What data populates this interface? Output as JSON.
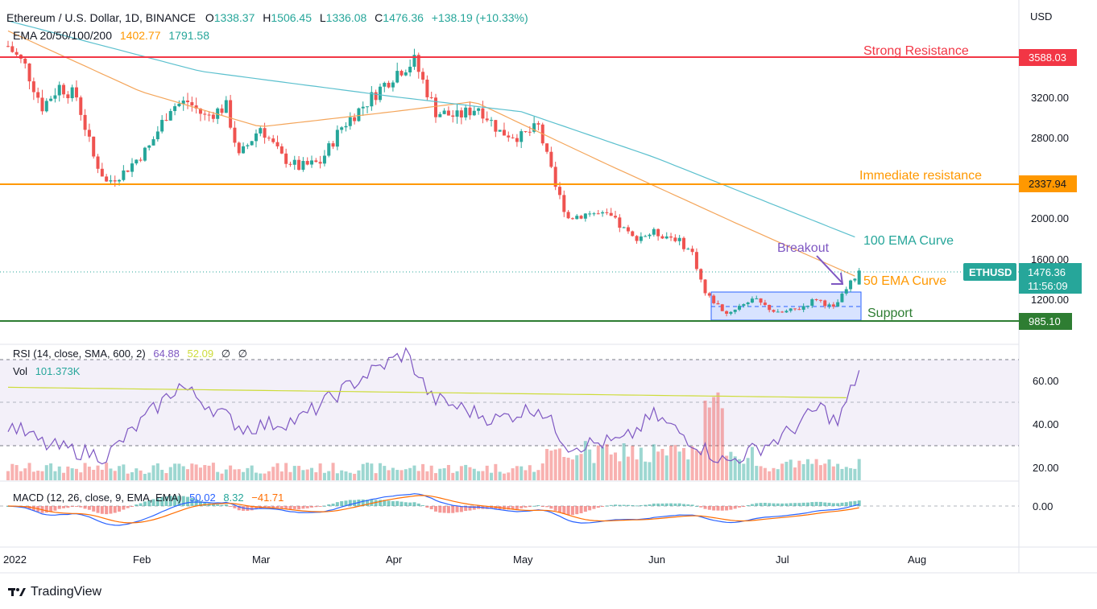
{
  "header": {
    "symbol_line": "Ethereum / U.S. Dollar, 1D, BINANCE",
    "o_label": "O",
    "o": "1338.37",
    "h_label": "H",
    "h": "1506.45",
    "l_label": "L",
    "l": "1336.08",
    "c_label": "C",
    "c": "1476.36",
    "change": "+138.19 (+10.33%)",
    "ema_label": "EMA 20/50/100/200",
    "ema_v1": "1402.77",
    "ema_v2": "1791.58"
  },
  "currency": "USD",
  "price_axis": [
    "3200.00",
    "2800.00",
    "2400.00",
    "2000.00",
    "1600.00",
    "1200.00"
  ],
  "rsi_axis": [
    "60.00",
    "40.00",
    "20.00"
  ],
  "macd_axis": [
    "0.00"
  ],
  "x_axis": [
    "2022",
    "Feb",
    "Mar",
    "Apr",
    "May",
    "Jun",
    "Jul",
    "Aug"
  ],
  "annotations": {
    "strong_resistance": "Strong Resistance",
    "immediate_resistance": "Immediate resistance",
    "ema100_curve": "100 EMA Curve",
    "ema50_curve": "50 EMA Curve",
    "breakout": "Breakout",
    "support": "Support"
  },
  "levels": {
    "strong_resistance": "3588.03",
    "immediate_resistance": "2337.94",
    "support": "985.10",
    "last_ticker": "ETHUSD",
    "last_price": "1476.36",
    "countdown": "11:56:09"
  },
  "rsi": {
    "label": "RSI (14, close, SMA, 600, 2)",
    "v1": "64.88",
    "v2": "52.09",
    "v3": "∅",
    "v4": "∅"
  },
  "vol": {
    "label": "Vol",
    "value": "101.373K"
  },
  "macd": {
    "label": "MACD (12, 26, close, 9, EMA, EMA)",
    "v1": "50.02",
    "v2": "8.32",
    "v3": "−41.71"
  },
  "footer": {
    "brand": "TradingView",
    "logo_icon": "tradingview-logo-icon"
  },
  "colors": {
    "up": "#26a69a",
    "down": "#ef5350",
    "ema50": "#f4a55a",
    "ema100": "#5bc0ce",
    "resistance_strong": "#f23645",
    "resistance_immediate": "#ff9800",
    "support": "#2e7d32",
    "rsi": "#7e57c2",
    "rsi_ma": "#cddc39",
    "macd": "#2962ff",
    "signal": "#ff6d00",
    "box": "#2962ff"
  },
  "chart_data": [
    {
      "type": "candlestick",
      "title": "Ethereum / U.S. Dollar, 1D, BINANCE",
      "x_range": [
        "2022-01-01",
        "2022-08-31"
      ],
      "ylim": [
        950,
        3900
      ],
      "y_ticks": [
        1200,
        1600,
        2000,
        2400,
        2800,
        3200
      ],
      "horizontal_levels": [
        {
          "name": "Strong Resistance",
          "value": 3588.03
        },
        {
          "name": "Immediate resistance",
          "value": 2337.94
        },
        {
          "name": "Support",
          "value": 985.1
        }
      ],
      "close_path": [
        {
          "date": "2022-01-01",
          "close": 3700
        },
        {
          "date": "2022-01-05",
          "close": 3500
        },
        {
          "date": "2022-01-09",
          "close": 3100
        },
        {
          "date": "2022-01-13",
          "close": 3300
        },
        {
          "date": "2022-01-17",
          "close": 3200
        },
        {
          "date": "2022-01-21",
          "close": 2600
        },
        {
          "date": "2022-01-24",
          "close": 2350
        },
        {
          "date": "2022-01-28",
          "close": 2450
        },
        {
          "date": "2022-02-03",
          "close": 2700
        },
        {
          "date": "2022-02-08",
          "close": 3100
        },
        {
          "date": "2022-02-12",
          "close": 3150
        },
        {
          "date": "2022-02-16",
          "close": 3000
        },
        {
          "date": "2022-02-21",
          "close": 3100
        },
        {
          "date": "2022-02-24",
          "close": 2600
        },
        {
          "date": "2022-03-01",
          "close": 2900
        },
        {
          "date": "2022-03-06",
          "close": 2600
        },
        {
          "date": "2022-03-10",
          "close": 2500
        },
        {
          "date": "2022-03-15",
          "close": 2550
        },
        {
          "date": "2022-03-20",
          "close": 2900
        },
        {
          "date": "2022-03-26",
          "close": 3150
        },
        {
          "date": "2022-04-02",
          "close": 3450
        },
        {
          "date": "2022-04-06",
          "close": 3550
        },
        {
          "date": "2022-04-11",
          "close": 3050
        },
        {
          "date": "2022-04-16",
          "close": 3000
        },
        {
          "date": "2022-04-21",
          "close": 3100
        },
        {
          "date": "2022-04-26",
          "close": 2850
        },
        {
          "date": "2022-05-01",
          "close": 2800
        },
        {
          "date": "2022-05-05",
          "close": 2900
        },
        {
          "date": "2022-05-09",
          "close": 2300
        },
        {
          "date": "2022-05-12",
          "close": 2000
        },
        {
          "date": "2022-05-17",
          "close": 2050
        },
        {
          "date": "2022-05-22",
          "close": 2000
        },
        {
          "date": "2022-05-27",
          "close": 1800
        },
        {
          "date": "2022-06-01",
          "close": 1850
        },
        {
          "date": "2022-06-06",
          "close": 1800
        },
        {
          "date": "2022-06-10",
          "close": 1650
        },
        {
          "date": "2022-06-13",
          "close": 1250
        },
        {
          "date": "2022-06-18",
          "close": 1050
        },
        {
          "date": "2022-06-24",
          "close": 1200
        },
        {
          "date": "2022-06-30",
          "close": 1050
        },
        {
          "date": "2022-07-05",
          "close": 1100
        },
        {
          "date": "2022-07-09",
          "close": 1200
        },
        {
          "date": "2022-07-13",
          "close": 1100
        },
        {
          "date": "2022-07-17",
          "close": 1350
        },
        {
          "date": "2022-07-19",
          "close": 1476.36
        }
      ],
      "series": [
        {
          "name": "EMA 50",
          "values": [
            {
              "date": "2022-01-01",
              "value": 3850
            },
            {
              "date": "2022-02-01",
              "value": 3250
            },
            {
              "date": "2022-03-01",
              "value": 2900
            },
            {
              "date": "2022-04-01",
              "value": 3050
            },
            {
              "date": "2022-04-20",
              "value": 3150
            },
            {
              "date": "2022-05-20",
              "value": 2550
            },
            {
              "date": "2022-06-20",
              "value": 1950
            },
            {
              "date": "2022-07-19",
              "value": 1402.77
            }
          ]
        },
        {
          "name": "EMA 100",
          "values": [
            {
              "date": "2022-01-01",
              "value": 3950
            },
            {
              "date": "2022-02-15",
              "value": 3450
            },
            {
              "date": "2022-04-01",
              "value": 3200
            },
            {
              "date": "2022-05-01",
              "value": 3050
            },
            {
              "date": "2022-06-01",
              "value": 2600
            },
            {
              "date": "2022-07-19",
              "value": 1791.58
            }
          ]
        }
      ],
      "box": {
        "from": "2022-06-13",
        "to": "2022-07-19",
        "low": 1000,
        "high": 1280,
        "label": "Support"
      }
    },
    {
      "type": "line",
      "title": "RSI (14, close, SMA, 600, 2)",
      "ylim": [
        16,
        76
      ],
      "bands": [
        70,
        50,
        30
      ],
      "series": [
        {
          "name": "RSI",
          "values": [
            {
              "date": "2022-01-01",
              "value": 40
            },
            {
              "date": "2022-01-10",
              "value": 30
            },
            {
              "date": "2022-01-24",
              "value": 25
            },
            {
              "date": "2022-02-10",
              "value": 58
            },
            {
              "date": "2022-02-25",
              "value": 38
            },
            {
              "date": "2022-03-10",
              "value": 42
            },
            {
              "date": "2022-03-25",
              "value": 62
            },
            {
              "date": "2022-04-04",
              "value": 73
            },
            {
              "date": "2022-04-10",
              "value": 52
            },
            {
              "date": "2022-04-25",
              "value": 42
            },
            {
              "date": "2022-05-05",
              "value": 48
            },
            {
              "date": "2022-05-12",
              "value": 30
            },
            {
              "date": "2022-05-25",
              "value": 32
            },
            {
              "date": "2022-06-01",
              "value": 44
            },
            {
              "date": "2022-06-13",
              "value": 28
            },
            {
              "date": "2022-06-18",
              "value": 22
            },
            {
              "date": "2022-07-01",
              "value": 34
            },
            {
              "date": "2022-07-10",
              "value": 48
            },
            {
              "date": "2022-07-14",
              "value": 40
            },
            {
              "date": "2022-07-19",
              "value": 64.88
            }
          ]
        },
        {
          "name": "RSI SMA",
          "values": [
            {
              "date": "2022-01-01",
              "value": 57
            },
            {
              "date": "2022-07-19",
              "value": 52.09
            }
          ]
        }
      ]
    },
    {
      "type": "bar",
      "title": "Vol",
      "last_value": "101.373K",
      "trend": "rising into mid-June capitulation, easing after"
    },
    {
      "type": "line",
      "title": "MACD (12, 26, close, 9, EMA, EMA)",
      "series": [
        {
          "name": "MACD",
          "last": 50.02
        },
        {
          "name": "Histogram",
          "last": 8.32
        },
        {
          "name": "Signal",
          "last": -41.71
        }
      ]
    }
  ]
}
